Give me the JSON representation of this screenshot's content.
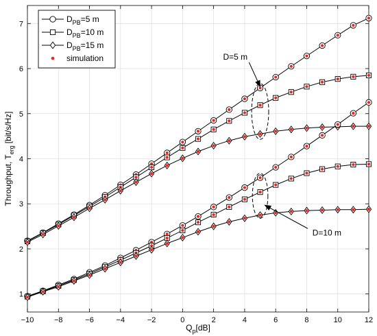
{
  "chart_data": {
    "type": "line",
    "xlabel": {
      "main": "Q",
      "sub": "p",
      "unit": "[dB]"
    },
    "ylabel": {
      "main": "Throughput, T",
      "sub": "erg",
      "unit": "[bit/s/Hz]"
    },
    "xlim": [
      -10,
      12
    ],
    "ylim": [
      0.6,
      7.4
    ],
    "xticks": [
      -10,
      -8,
      -6,
      -4,
      -2,
      0,
      2,
      4,
      6,
      8,
      10,
      12
    ],
    "yticks": [
      1,
      2,
      3,
      4,
      5,
      6,
      7
    ],
    "grid": true,
    "legend_position": "top-left",
    "legend": [
      {
        "label_main": "D",
        "label_sub": "PB",
        "label_rest": "=5 m",
        "marker": "circle"
      },
      {
        "label_main": "D",
        "label_sub": "PB",
        "label_rest": "=10 m",
        "marker": "square"
      },
      {
        "label_main": "D",
        "label_sub": "PB",
        "label_rest": "=15 m",
        "marker": "diamond"
      },
      {
        "label_main": "",
        "label_sub": "",
        "label_rest": "simulation",
        "marker": "dot"
      }
    ],
    "x": [
      -10,
      -9,
      -8,
      -7,
      -6,
      -5,
      -4,
      -3,
      -2,
      -1,
      0,
      1,
      2,
      3,
      4,
      5,
      6,
      7,
      8,
      9,
      10,
      11,
      12
    ],
    "series": [
      {
        "group": "D=5 m",
        "marker": "circle",
        "values": [
          2.18,
          2.36,
          2.56,
          2.76,
          2.97,
          3.19,
          3.42,
          3.65,
          3.89,
          4.13,
          4.37,
          4.61,
          4.85,
          5.09,
          5.33,
          5.57,
          5.81,
          6.05,
          6.28,
          6.51,
          6.74,
          6.96,
          7.12
        ]
      },
      {
        "group": "D=5 m",
        "marker": "square",
        "values": [
          2.17,
          2.35,
          2.54,
          2.74,
          2.94,
          3.15,
          3.37,
          3.59,
          3.81,
          4.03,
          4.24,
          4.44,
          4.65,
          4.84,
          5.02,
          5.19,
          5.35,
          5.48,
          5.6,
          5.7,
          5.77,
          5.82,
          5.85
        ]
      },
      {
        "group": "D=5 m",
        "marker": "diamond",
        "values": [
          2.15,
          2.32,
          2.51,
          2.7,
          2.9,
          3.09,
          3.29,
          3.48,
          3.67,
          3.85,
          4.01,
          4.16,
          4.29,
          4.4,
          4.49,
          4.55,
          4.61,
          4.65,
          4.68,
          4.7,
          4.71,
          4.72,
          4.72
        ]
      },
      {
        "group": "D=10 m",
        "marker": "circle",
        "values": [
          0.95,
          1.07,
          1.2,
          1.33,
          1.48,
          1.63,
          1.8,
          1.97,
          2.15,
          2.33,
          2.52,
          2.72,
          2.93,
          3.14,
          3.36,
          3.58,
          3.81,
          4.04,
          4.28,
          4.52,
          4.76,
          5.01,
          5.25
        ]
      },
      {
        "group": "D=10 m",
        "marker": "square",
        "values": [
          0.94,
          1.06,
          1.18,
          1.31,
          1.45,
          1.6,
          1.75,
          1.91,
          2.07,
          2.24,
          2.41,
          2.59,
          2.76,
          2.93,
          3.1,
          3.26,
          3.42,
          3.56,
          3.68,
          3.77,
          3.83,
          3.87,
          3.88
        ]
      },
      {
        "group": "D=10 m",
        "marker": "diamond",
        "values": [
          0.93,
          1.05,
          1.16,
          1.29,
          1.42,
          1.56,
          1.7,
          1.84,
          1.98,
          2.12,
          2.25,
          2.38,
          2.5,
          2.6,
          2.68,
          2.75,
          2.8,
          2.83,
          2.85,
          2.86,
          2.87,
          2.87,
          2.88
        ]
      }
    ],
    "annotations": [
      {
        "text": "D=5 m",
        "text_at": [
          3.4,
          6.2
        ],
        "arrow_to": [
          5.0,
          5.6
        ],
        "ellipse_center": [
          5.0,
          5.05
        ],
        "ellipse_radii": [
          0.55,
          0.62
        ]
      },
      {
        "text": "D=10 m",
        "text_at": [
          9.3,
          2.3
        ],
        "arrow_to": [
          5.3,
          2.97
        ],
        "ellipse_center": [
          5.0,
          3.18
        ],
        "ellipse_radii": [
          0.5,
          0.5
        ]
      }
    ],
    "colors": {
      "line": "#000000",
      "marker_face": "#ffffff",
      "simulation": "#e8261f",
      "grid": "#e0e0e0"
    }
  }
}
